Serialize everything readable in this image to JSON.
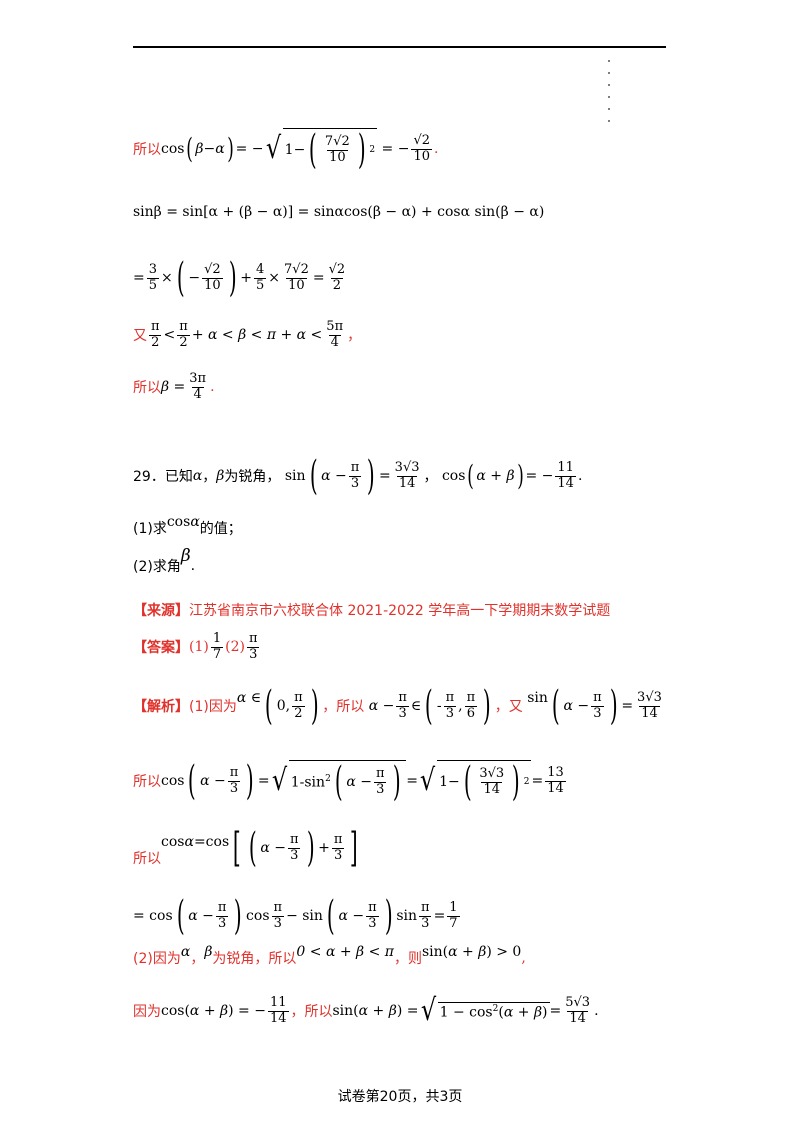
{
  "page": {
    "footer": "试卷第20页，共3页"
  },
  "top": {
    "l1_prefix": "所以",
    "l1_expr_a": "cos",
    "l1_expr_b": "β−α",
    "l1_eq": "= −",
    "l1_frac_num": "7√2",
    "l1_frac_den": "10",
    "l1_rhs_num": "√2",
    "l1_rhs_den": "10",
    "l2_text": "sinβ = sin[α + (β − α)] = sinαcos(β − α) + cosα sin(β − α)",
    "l3_a_num": "3",
    "l3_a_den": "5",
    "l3_b_num": "√2",
    "l3_b_den": "10",
    "l3_c_num": "4",
    "l3_c_den": "5",
    "l3_d_num": "7√2",
    "l3_d_den": "10",
    "l3_e_num": "√2",
    "l3_e_den": "2",
    "l4_prefix": "又",
    "l4_pi": "π",
    "l4_2": "2",
    "l4_mid": "+ α < β < π + α <",
    "l4_5pi": "5π",
    "l4_4": "4",
    "l5_prefix": "所以",
    "l5_beta": "β =",
    "l5_num": "3π",
    "l5_den": "4"
  },
  "q29": {
    "number": "29．已知",
    "alpha": "α",
    "mid": "，",
    "beta": "β",
    "acute": "为锐角，",
    "sin_num": "3√3",
    "sin_den": "14",
    "cos_num": "11",
    "cos_den": "14",
    "part1": "(1)求",
    "part1_tail": "的值；",
    "part2": "(2)求角",
    "source_label": "【来源】",
    "source_text": "江苏省南京市六校联合体 2021-2022 学年高一下学期期末数学试题",
    "answer_label": "【答案】",
    "ans1": "(1)",
    "ans1_num": "1",
    "ans1_den": "7",
    "ans2": "(2)",
    "ans2_num": "π",
    "ans2_den": "3"
  },
  "solution": {
    "label": "【解析】",
    "p1_intro": "(1)因为",
    "so": "所以",
    "again": "又",
    "r1_num": "13",
    "r1_den": "14",
    "so_cos": "所以",
    "final_num": "1",
    "final_den": "7",
    "p2_intro": "(2)因为",
    "p2_acute": "为锐角，所以",
    "p2_then": "，则",
    "p3_intro": "因为",
    "p3_so": "，所以",
    "p3_rhs_num": "5√3",
    "p3_rhs_den": "14"
  }
}
